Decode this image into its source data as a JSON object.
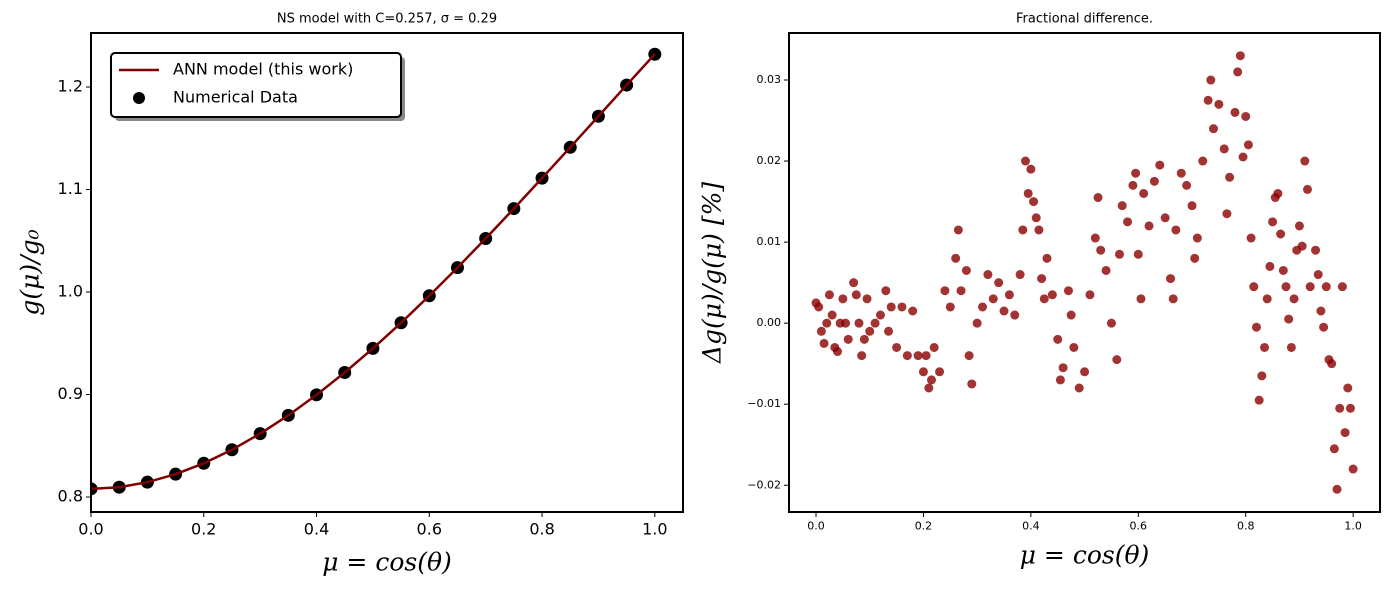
{
  "chart_data": [
    {
      "type": "line",
      "title": "NS model with C=0.257, σ = 0.29",
      "xlabel": "μ = cos(θ)",
      "ylabel": "g(μ)/g₀",
      "x": [
        0,
        0.05,
        0.1,
        0.15,
        0.2,
        0.25,
        0.3,
        0.35,
        0.4,
        0.45,
        0.5,
        0.55,
        0.6,
        0.65,
        0.7,
        0.75,
        0.8,
        0.85,
        0.9,
        0.95,
        1.0
      ],
      "series": [
        {
          "name": "ANN model (this work)",
          "type": "line",
          "color": "#7f0000",
          "values": [
            0.808,
            0.8096,
            0.8145,
            0.8223,
            0.8329,
            0.8461,
            0.8618,
            0.8797,
            0.8997,
            0.9215,
            0.945,
            0.97,
            0.9964,
            1.0238,
            1.0522,
            1.0814,
            1.1111,
            1.1412,
            1.1715,
            1.2019,
            1.232
          ]
        },
        {
          "name": "Numerical Data",
          "type": "scatter",
          "color": "#000000",
          "values": [
            0.808,
            0.8096,
            0.8145,
            0.8223,
            0.8329,
            0.8461,
            0.8618,
            0.8797,
            0.8997,
            0.9215,
            0.945,
            0.97,
            0.9964,
            1.0238,
            1.0522,
            1.0814,
            1.1111,
            1.1412,
            1.1715,
            1.2019,
            1.232
          ]
        }
      ],
      "xlim": [
        0,
        1.05
      ],
      "ylim": [
        0.7854,
        1.2527
      ],
      "xticks": [
        {
          "value": 0,
          "label": "0.0"
        },
        0.2,
        0.4,
        0.6,
        0.8,
        {
          "value": 1,
          "label": "1.0"
        }
      ],
      "yticks": [
        0.8,
        0.9,
        {
          "value": 1,
          "label": "1.0"
        },
        1.1,
        1.2
      ],
      "legend": "upper left",
      "grid": false
    },
    {
      "type": "scatter",
      "title": "Fractional difference.",
      "xlabel": "μ = cos(θ)",
      "ylabel": "Δg(μ)/g(μ)  [%]",
      "color": "#8b0000",
      "x": [
        0,
        0.005,
        0.01,
        0.015,
        0.02,
        0.025,
        0.03,
        0.035,
        0.04,
        0.045,
        0.05,
        0.055,
        0.06,
        0.07,
        0.075,
        0.08,
        0.085,
        0.09,
        0.095,
        0.1,
        0.11,
        0.12,
        0.13,
        0.135,
        0.14,
        0.15,
        0.16,
        0.17,
        0.18,
        0.19,
        0.2,
        0.205,
        0.21,
        0.215,
        0.22,
        0.23,
        0.24,
        0.25,
        0.26,
        0.265,
        0.27,
        0.28,
        0.285,
        0.29,
        0.3,
        0.31,
        0.32,
        0.33,
        0.34,
        0.35,
        0.36,
        0.37,
        0.38,
        0.385,
        0.39,
        0.395,
        0.4,
        0.405,
        0.41,
        0.415,
        0.42,
        0.425,
        0.43,
        0.44,
        0.45,
        0.455,
        0.46,
        0.47,
        0.475,
        0.48,
        0.49,
        0.5,
        0.51,
        0.52,
        0.525,
        0.53,
        0.54,
        0.55,
        0.56,
        0.565,
        0.57,
        0.58,
        0.59,
        0.595,
        0.6,
        0.605,
        0.61,
        0.62,
        0.63,
        0.64,
        0.65,
        0.66,
        0.665,
        0.67,
        0.68,
        0.69,
        0.7,
        0.705,
        0.71,
        0.72,
        0.73,
        0.735,
        0.74,
        0.75,
        0.76,
        0.765,
        0.77,
        0.78,
        0.785,
        0.79,
        0.795,
        0.8,
        0.805,
        0.81,
        0.815,
        0.82,
        0.825,
        0.83,
        0.835,
        0.84,
        0.845,
        0.85,
        0.855,
        0.86,
        0.865,
        0.87,
        0.875,
        0.88,
        0.885,
        0.89,
        0.895,
        0.9,
        0.905,
        0.91,
        0.915,
        0.92,
        0.93,
        0.935,
        0.94,
        0.945,
        0.95,
        0.955,
        0.96,
        0.965,
        0.97,
        0.975,
        0.98,
        0.985,
        0.99,
        0.995,
        1.0
      ],
      "values": [
        0.0025,
        0.002,
        -0.001,
        -0.0025,
        0.0,
        0.0035,
        0.001,
        -0.003,
        -0.0035,
        0.0,
        0.003,
        0.0,
        -0.002,
        0.005,
        0.0035,
        0.0,
        -0.004,
        -0.002,
        0.003,
        -0.001,
        0.0,
        0.001,
        0.004,
        -0.001,
        0.002,
        -0.003,
        0.002,
        -0.004,
        0.0015,
        -0.004,
        -0.006,
        -0.004,
        -0.008,
        -0.007,
        -0.003,
        -0.006,
        0.004,
        0.002,
        0.008,
        0.0115,
        0.004,
        0.0065,
        -0.004,
        -0.0075,
        0.0,
        0.002,
        0.006,
        0.003,
        0.005,
        0.0015,
        0.0035,
        0.001,
        0.006,
        0.0115,
        0.02,
        0.016,
        0.019,
        0.015,
        0.013,
        0.0115,
        0.0055,
        0.003,
        0.008,
        0.0035,
        -0.002,
        -0.007,
        -0.0055,
        0.004,
        0.001,
        -0.003,
        -0.008,
        -0.006,
        0.0035,
        0.0105,
        0.0155,
        0.009,
        0.0065,
        0.0,
        -0.0045,
        0.0085,
        0.0145,
        0.0125,
        0.017,
        0.0185,
        0.0085,
        0.003,
        0.016,
        0.012,
        0.0175,
        0.0195,
        0.013,
        0.0055,
        0.003,
        0.0115,
        0.0185,
        0.017,
        0.0145,
        0.008,
        0.0105,
        0.02,
        0.0275,
        0.03,
        0.024,
        0.027,
        0.0215,
        0.0135,
        0.018,
        0.026,
        0.031,
        0.033,
        0.0205,
        0.0255,
        0.022,
        0.0105,
        0.0045,
        -0.0005,
        -0.0095,
        -0.0065,
        -0.003,
        0.003,
        0.007,
        0.0125,
        0.0155,
        0.016,
        0.011,
        0.0065,
        0.0045,
        0.0005,
        -0.003,
        0.003,
        0.009,
        0.012,
        0.0095,
        0.02,
        0.0165,
        0.0045,
        0.009,
        0.006,
        0.0015,
        -0.0005,
        0.0045,
        -0.0045,
        -0.005,
        -0.0155,
        -0.0205,
        -0.0105,
        0.0045,
        -0.0135,
        -0.008,
        -0.0105,
        -0.018
      ],
      "xlim": [
        -0.0503,
        1.05
      ],
      "ylim": [
        -0.0233,
        0.0358
      ],
      "xticks": [
        {
          "value": 0,
          "label": "0.0"
        },
        0.2,
        0.4,
        0.6,
        0.8,
        {
          "value": 1,
          "label": "1.0"
        }
      ],
      "yticks": [
        {
          "value": -0.02,
          "label": "−0.02"
        },
        {
          "value": -0.01,
          "label": "−0.01"
        },
        {
          "value": 0,
          "label": "0.00"
        },
        0.01,
        0.02,
        0.03
      ],
      "grid": false
    }
  ]
}
